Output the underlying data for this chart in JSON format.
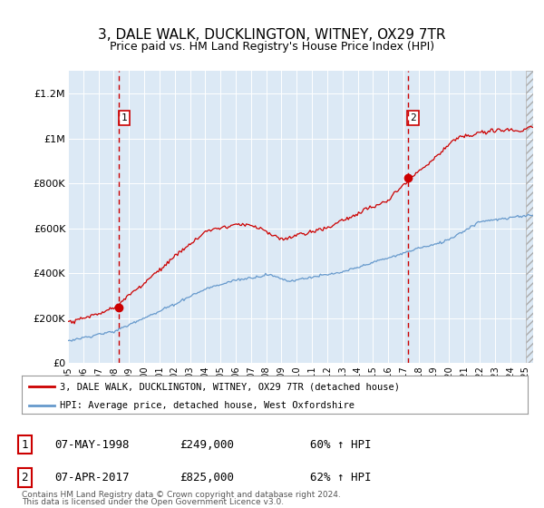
{
  "title": "3, DALE WALK, DUCKLINGTON, WITNEY, OX29 7TR",
  "subtitle": "Price paid vs. HM Land Registry's House Price Index (HPI)",
  "title_fontsize": 11,
  "subtitle_fontsize": 9,
  "fig_bg_color": "#ffffff",
  "plot_bg_color": "#dce9f5",
  "ylim": [
    0,
    1300000
  ],
  "yticks": [
    0,
    200000,
    400000,
    600000,
    800000,
    1000000,
    1200000
  ],
  "ytick_labels": [
    "£0",
    "£200K",
    "£400K",
    "£600K",
    "£800K",
    "£1M",
    "£1.2M"
  ],
  "legend_entry1": "3, DALE WALK, DUCKLINGTON, WITNEY, OX29 7TR (detached house)",
  "legend_entry2": "HPI: Average price, detached house, West Oxfordshire",
  "transaction1_date": "07-MAY-1998",
  "transaction1_price": "£249,000",
  "transaction1_pct": "60% ↑ HPI",
  "transaction2_date": "07-APR-2017",
  "transaction2_price": "£825,000",
  "transaction2_pct": "62% ↑ HPI",
  "footnote1": "Contains HM Land Registry data © Crown copyright and database right 2024.",
  "footnote2": "This data is licensed under the Open Government Licence v3.0.",
  "line1_color": "#cc0000",
  "line2_color": "#6699cc",
  "vline_color": "#cc0000",
  "marker_x1": 1998.35,
  "marker_y1": 249000,
  "marker_x2": 2017.27,
  "marker_y2": 825000,
  "xmin": 1995.0,
  "xmax": 2025.5
}
